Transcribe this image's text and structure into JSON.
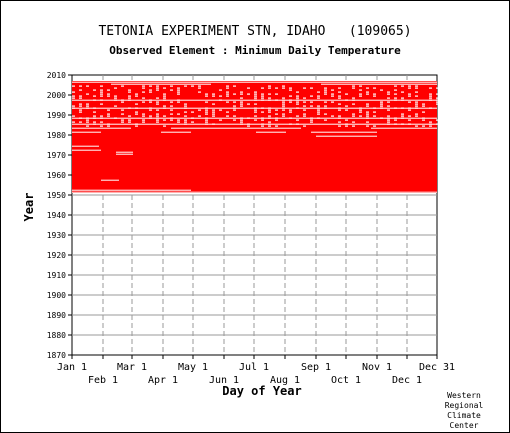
{
  "chart_data": {
    "type": "heatmap",
    "title": "TETONIA EXPERIMENT STN, IDAHO   (109065)",
    "subtitle": "Observed Element : Minimum Daily Temperature",
    "xlabel": "Day of Year",
    "ylabel": "Year",
    "ylim": [
      1870,
      2010
    ],
    "yticks": [
      1870,
      1880,
      1890,
      1900,
      1910,
      1920,
      1930,
      1940,
      1950,
      1960,
      1970,
      1980,
      1990,
      2000,
      2010
    ],
    "xlim": [
      1,
      366
    ],
    "xticks_top": [
      {
        "label": "Jan 1",
        "day": 1
      },
      {
        "label": "Mar 1",
        "day": 61
      },
      {
        "label": "May 1",
        "day": 122
      },
      {
        "label": "Jul 1",
        "day": 183
      },
      {
        "label": "Sep 1",
        "day": 245
      },
      {
        "label": "Nov 1",
        "day": 306
      },
      {
        "label": "Dec 31",
        "day": 366
      }
    ],
    "xticks_bottom": [
      {
        "label": "Feb 1",
        "day": 32
      },
      {
        "label": "Apr 1",
        "day": 92
      },
      {
        "label": "Jun 1",
        "day": 153
      },
      {
        "label": "Aug 1",
        "day": 214
      },
      {
        "label": "Oct 1",
        "day": 275
      },
      {
        "label": "Dec 1",
        "day": 336
      }
    ],
    "grid": true,
    "color_present": "#ff0000",
    "record_start_year": 1951,
    "record_end_year": 2006,
    "gaps": [
      {
        "year": 2006,
        "day_start": 1,
        "day_end": 366
      },
      {
        "year": 2005,
        "day_start": 40,
        "day_end": 140
      },
      {
        "year": 2005,
        "day_start": 250,
        "day_end": 366
      },
      {
        "year": 1997,
        "day_start": 1,
        "day_end": 366
      },
      {
        "year": 1993,
        "day_start": 1,
        "day_end": 366
      },
      {
        "year": 1988,
        "day_start": 1,
        "day_end": 366
      },
      {
        "year": 1985,
        "day_start": 1,
        "day_end": 366
      },
      {
        "year": 1983,
        "day_start": 1,
        "day_end": 60
      },
      {
        "year": 1983,
        "day_start": 100,
        "day_end": 230
      },
      {
        "year": 1983,
        "day_start": 300,
        "day_end": 366
      },
      {
        "year": 1981,
        "day_start": 1,
        "day_end": 30
      },
      {
        "year": 1981,
        "day_start": 90,
        "day_end": 120
      },
      {
        "year": 1981,
        "day_start": 185,
        "day_end": 215
      },
      {
        "year": 1981,
        "day_start": 240,
        "day_end": 306
      },
      {
        "year": 1979,
        "day_start": 245,
        "day_end": 306
      },
      {
        "year": 1974,
        "day_start": 1,
        "day_end": 28
      },
      {
        "year": 1972,
        "day_start": 1,
        "day_end": 30
      },
      {
        "year": 1971,
        "day_start": 45,
        "day_end": 62
      },
      {
        "year": 1970,
        "day_start": 45,
        "day_end": 62
      },
      {
        "year": 1957,
        "day_start": 30,
        "day_end": 48
      },
      {
        "year": 1952,
        "day_start": 1,
        "day_end": 120
      },
      {
        "year": 1951,
        "day_start": 1,
        "day_end": 366
      }
    ]
  },
  "credit": [
    "Western",
    "Regional",
    "Climate",
    "Center"
  ]
}
